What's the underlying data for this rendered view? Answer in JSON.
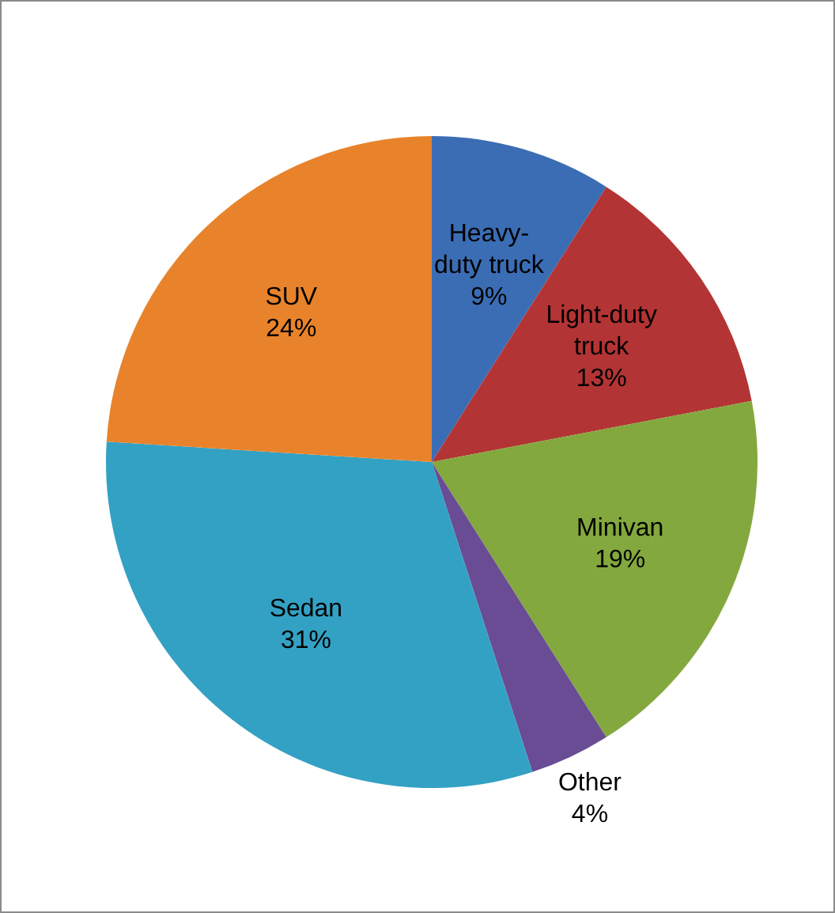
{
  "chart_data": {
    "type": "pie",
    "categories": [
      "Heavy-duty truck",
      "Light-duty truck",
      "Minivan",
      "Other",
      "Sedan",
      "SUV"
    ],
    "values": [
      9,
      13,
      19,
      4,
      31,
      24
    ],
    "value_labels": [
      "9%",
      "13%",
      "19%",
      "4%",
      "31%",
      "24%"
    ],
    "colors": [
      "#3b6db4",
      "#b33434",
      "#83a83e",
      "#6a4c94",
      "#33a1c4",
      "#e8832b"
    ]
  }
}
